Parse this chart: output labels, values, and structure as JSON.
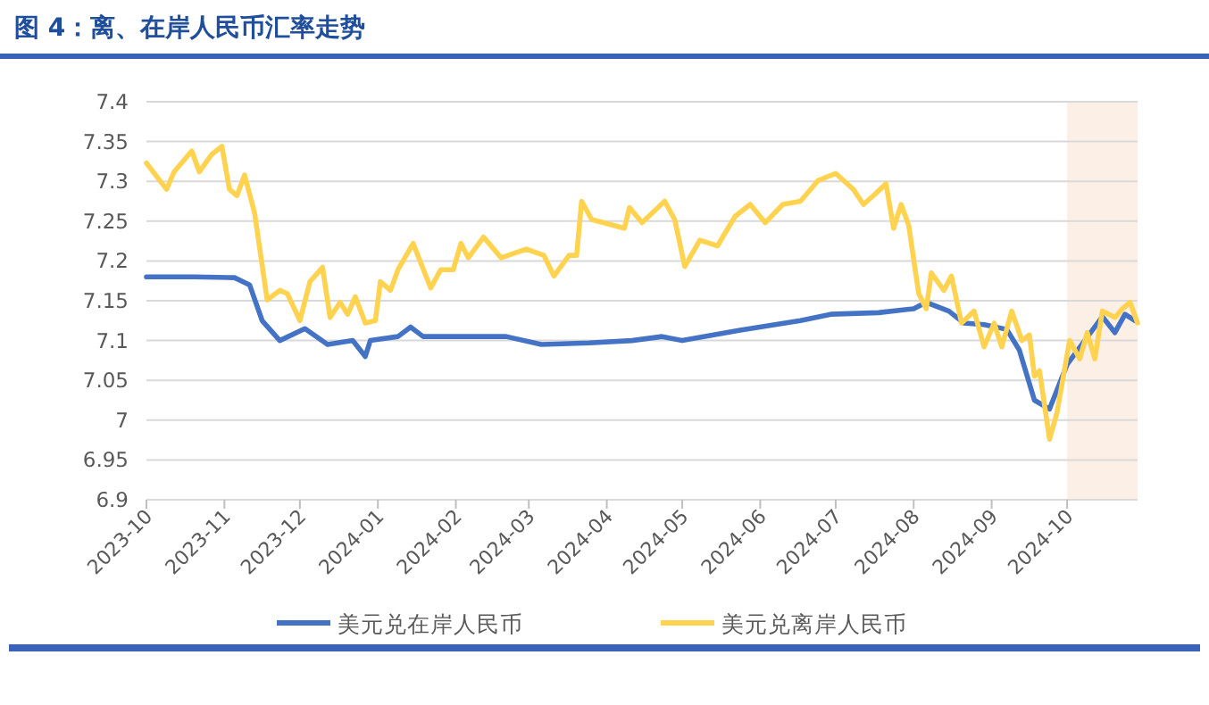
{
  "chart_data": {
    "type": "line",
    "title": "图 4：离、在岸人民币汇率走势",
    "xlim": [
      "2023-10-01",
      "2024-10-29"
    ],
    "xticks": [
      "2023-10",
      "2023-11",
      "2023-12",
      "2024-01",
      "2024-02",
      "2024-03",
      "2024-04",
      "2024-05",
      "2024-06",
      "2024-07",
      "2024-08",
      "2024-09",
      "2024-10"
    ],
    "ylim": [
      6.9,
      7.4
    ],
    "yticks": [
      6.9,
      6.95,
      7,
      7.05,
      7.1,
      7.15,
      7.2,
      7.25,
      7.3,
      7.35,
      7.4
    ],
    "grid": "y",
    "legend": "bottom",
    "line_style": "solid",
    "marker": "none",
    "bands": [
      {
        "axis": "x",
        "from": "2024-10-01",
        "to": "2024-10-29",
        "color": "#fcefe6"
      }
    ],
    "series": [
      {
        "name": "美元兑在岸人民币",
        "color": "#4472c4",
        "x": [
          "2023-10-01",
          "2023-10-20",
          "2023-11-05",
          "2023-11-11",
          "2023-11-16",
          "2023-11-23",
          "2023-12-03",
          "2023-12-12",
          "2023-12-22",
          "2023-12-27",
          "2023-12-29",
          "2024-01-09",
          "2024-01-14",
          "2024-01-19",
          "2024-02-21",
          "2024-03-06",
          "2024-03-25",
          "2024-04-11",
          "2024-04-23",
          "2024-05-01",
          "2024-05-24",
          "2024-06-17",
          "2024-06-29",
          "2024-07-18",
          "2024-08-01",
          "2024-08-06",
          "2024-08-15",
          "2024-08-21",
          "2024-08-29",
          "2024-09-07",
          "2024-09-12",
          "2024-09-18",
          "2024-09-24",
          "2024-10-01",
          "2024-10-08",
          "2024-10-15",
          "2024-10-20",
          "2024-10-24",
          "2024-10-28"
        ],
        "values": [
          7.18,
          7.18,
          7.179,
          7.17,
          7.125,
          7.1,
          7.115,
          7.095,
          7.1,
          7.08,
          7.1,
          7.105,
          7.117,
          7.105,
          7.105,
          7.095,
          7.097,
          7.1,
          7.105,
          7.1,
          7.113,
          7.125,
          7.133,
          7.135,
          7.14,
          7.148,
          7.137,
          7.122,
          7.12,
          7.114,
          7.088,
          7.025,
          7.014,
          7.07,
          7.1,
          7.13,
          7.11,
          7.133,
          7.125
        ]
      },
      {
        "name": "美元兑离岸人民币",
        "color": "#ffd34f",
        "x": [
          "2023-10-01",
          "2023-10-09",
          "2023-10-12",
          "2023-10-19",
          "2023-10-22",
          "2023-10-27",
          "2023-10-31",
          "2023-11-03",
          "2023-11-06",
          "2023-11-09",
          "2023-11-13",
          "2023-11-18",
          "2023-11-23",
          "2023-11-26",
          "2023-12-01",
          "2023-12-05",
          "2023-12-10",
          "2023-12-13",
          "2023-12-17",
          "2023-12-20",
          "2023-12-23",
          "2023-12-27",
          "2023-12-31",
          "2024-01-02",
          "2024-01-06",
          "2024-01-09",
          "2024-01-15",
          "2024-01-22",
          "2024-01-26",
          "2024-01-31",
          "2024-02-03",
          "2024-02-06",
          "2024-02-12",
          "2024-02-19",
          "2024-02-29",
          "2024-03-07",
          "2024-03-11",
          "2024-03-17",
          "2024-03-20",
          "2024-03-22",
          "2024-03-26",
          "2024-04-08",
          "2024-04-10",
          "2024-04-15",
          "2024-04-24",
          "2024-04-28",
          "2024-05-02",
          "2024-05-08",
          "2024-05-15",
          "2024-05-22",
          "2024-05-28",
          "2024-06-03",
          "2024-06-10",
          "2024-06-17",
          "2024-06-24",
          "2024-07-01",
          "2024-07-08",
          "2024-07-12",
          "2024-07-16",
          "2024-07-21",
          "2024-07-24",
          "2024-07-27",
          "2024-07-30",
          "2024-08-03",
          "2024-08-06",
          "2024-08-08",
          "2024-08-13",
          "2024-08-16",
          "2024-08-20",
          "2024-08-25",
          "2024-08-29",
          "2024-09-02",
          "2024-09-05",
          "2024-09-09",
          "2024-09-13",
          "2024-09-16",
          "2024-09-18",
          "2024-09-20",
          "2024-09-24",
          "2024-09-27",
          "2024-10-02",
          "2024-10-06",
          "2024-10-09",
          "2024-10-12",
          "2024-10-15",
          "2024-10-20",
          "2024-10-23",
          "2024-10-26",
          "2024-10-29"
        ],
        "values": [
          7.323,
          7.29,
          7.312,
          7.338,
          7.312,
          7.334,
          7.344,
          7.29,
          7.282,
          7.308,
          7.26,
          7.151,
          7.163,
          7.159,
          7.125,
          7.174,
          7.192,
          7.129,
          7.148,
          7.133,
          7.155,
          7.122,
          7.125,
          7.174,
          7.163,
          7.189,
          7.222,
          7.166,
          7.189,
          7.189,
          7.222,
          7.204,
          7.23,
          7.204,
          7.215,
          7.207,
          7.181,
          7.207,
          7.207,
          7.275,
          7.252,
          7.241,
          7.267,
          7.248,
          7.275,
          7.252,
          7.193,
          7.226,
          7.219,
          7.256,
          7.271,
          7.248,
          7.271,
          7.275,
          7.301,
          7.31,
          7.29,
          7.271,
          7.282,
          7.297,
          7.241,
          7.271,
          7.245,
          7.159,
          7.14,
          7.185,
          7.163,
          7.181,
          7.122,
          7.137,
          7.092,
          7.122,
          7.092,
          7.137,
          7.1,
          7.107,
          7.055,
          7.062,
          6.976,
          7.01,
          7.1,
          7.077,
          7.11,
          7.077,
          7.137,
          7.129,
          7.14,
          7.148,
          7.122
        ]
      }
    ]
  }
}
